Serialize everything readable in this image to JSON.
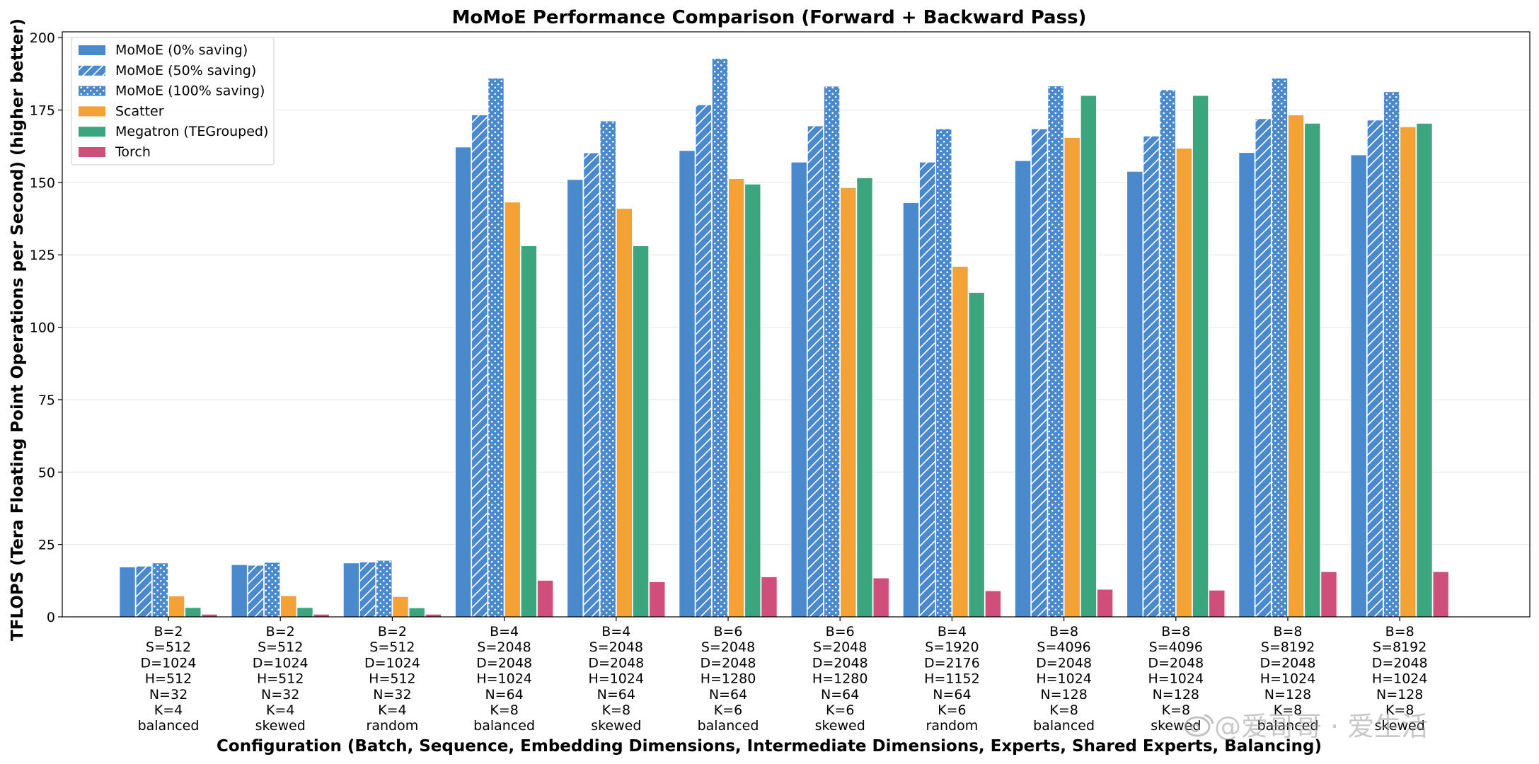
{
  "chart_data": {
    "type": "bar",
    "title": "MoMoE Performance Comparison (Forward + Backward Pass)",
    "xlabel": "Configuration (Batch, Sequence, Embedding Dimensions, Intermediate Dimensions, Experts, Shared Experts, Balancing)",
    "ylabel": "TFLOPS (Tera Floating Point Operations per Second) (higher better)",
    "ylim": [
      0,
      202
    ],
    "yticks": [
      0,
      25,
      50,
      75,
      100,
      125,
      150,
      175,
      200
    ],
    "grid": "horizontal",
    "legend_position": "top-left",
    "categories": [
      [
        "B=2",
        "S=512",
        "D=1024",
        "H=512",
        "N=32",
        "K=4",
        "balanced"
      ],
      [
        "B=2",
        "S=512",
        "D=1024",
        "H=512",
        "N=32",
        "K=4",
        "skewed"
      ],
      [
        "B=2",
        "S=512",
        "D=1024",
        "H=512",
        "N=32",
        "K=4",
        "random"
      ],
      [
        "B=4",
        "S=2048",
        "D=2048",
        "H=1024",
        "N=64",
        "K=8",
        "balanced"
      ],
      [
        "B=4",
        "S=2048",
        "D=2048",
        "H=1024",
        "N=64",
        "K=8",
        "skewed"
      ],
      [
        "B=6",
        "S=2048",
        "D=2048",
        "H=1280",
        "N=64",
        "K=6",
        "balanced"
      ],
      [
        "B=6",
        "S=2048",
        "D=2048",
        "H=1280",
        "N=64",
        "K=6",
        "skewed"
      ],
      [
        "B=4",
        "S=1920",
        "D=2176",
        "H=1152",
        "N=64",
        "K=6",
        "random"
      ],
      [
        "B=8",
        "S=4096",
        "D=2048",
        "H=1024",
        "N=128",
        "K=8",
        "balanced"
      ],
      [
        "B=8",
        "S=4096",
        "D=2048",
        "H=1024",
        "N=128",
        "K=8",
        "skewed"
      ],
      [
        "B=8",
        "S=8192",
        "D=2048",
        "H=1024",
        "N=128",
        "K=8",
        "balanced"
      ],
      [
        "B=8",
        "S=8192",
        "D=2048",
        "H=1024",
        "N=128",
        "K=8",
        "skewed"
      ]
    ],
    "series": [
      {
        "name": "MoMoE (0% saving)",
        "color": "#4a89cc",
        "pattern": "solid",
        "values": [
          17.2,
          18.0,
          18.6,
          162.2,
          151.0,
          161.0,
          157.0,
          143.0,
          157.5,
          153.8,
          160.3,
          159.5
        ]
      },
      {
        "name": "MoMoE (50% saving)",
        "color": "#4a89cc",
        "pattern": "hatch",
        "values": [
          17.5,
          17.8,
          18.9,
          173.3,
          160.2,
          176.8,
          169.5,
          157.0,
          168.5,
          166.0,
          172.0,
          171.5
        ]
      },
      {
        "name": "MoMoE (100% saving)",
        "color": "#4a89cc",
        "pattern": "dots",
        "values": [
          18.6,
          18.8,
          19.5,
          186.0,
          171.2,
          192.8,
          183.2,
          168.5,
          183.3,
          182.0,
          186.0,
          181.3
        ]
      },
      {
        "name": "Scatter",
        "color": "#f4a236",
        "pattern": "solid",
        "values": [
          7.2,
          7.3,
          7.0,
          143.2,
          141.0,
          151.3,
          148.2,
          121.0,
          165.5,
          161.8,
          173.3,
          169.2
        ]
      },
      {
        "name": "Megatron (TEGrouped)",
        "color": "#3aa57f",
        "pattern": "solid",
        "values": [
          3.2,
          3.2,
          3.1,
          128.1,
          128.1,
          149.4,
          151.6,
          112.0,
          180.0,
          180.0,
          170.4,
          170.4
        ]
      },
      {
        "name": "Torch",
        "color": "#cf4e7a",
        "pattern": "solid",
        "values": [
          0.9,
          0.9,
          0.9,
          12.6,
          12.1,
          13.8,
          13.4,
          9.0,
          9.5,
          9.2,
          15.6,
          15.6
        ]
      }
    ]
  },
  "watermark": {
    "text": "@爱哥哥 · 爱生活",
    "icon": "weibo-logo-icon"
  }
}
